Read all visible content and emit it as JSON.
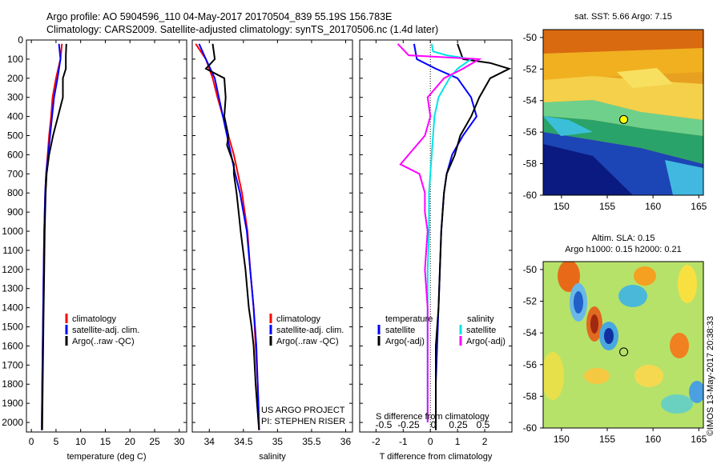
{
  "header": {
    "line1": "Argo profile: AO 5904596_110 04-May-2017 20170504_839 55.19S 156.783E",
    "line2": "Climatology: CARS2009. Satellite-adjusted climatology: synTS_20170506.nc (1.4d later)"
  },
  "colors": {
    "climatology": "#ff0000",
    "satellite": "#0000ff",
    "argo": "#000000",
    "satellite_salinity": "#00e5e5",
    "argo_adj_salinity": "#ff00ff"
  },
  "chart_data": [
    {
      "id": "temperature",
      "type": "line",
      "xlabel": "temperature (deg C)",
      "xlim": [
        -1,
        31.5
      ],
      "xticks": [
        0,
        5,
        10,
        15,
        20,
        25,
        30
      ],
      "ylim": [
        0,
        2050
      ],
      "yticks": [
        0,
        100,
        200,
        300,
        400,
        500,
        600,
        700,
        800,
        900,
        1000,
        1100,
        1200,
        1300,
        1400,
        1500,
        1600,
        1700,
        1800,
        1900,
        2000
      ],
      "legend": [
        "climatology",
        "satellite-adj. clim.",
        "Argo(..raw -QC)"
      ],
      "series": [
        {
          "name": "climatology",
          "color": "#ff0000",
          "points": [
            [
              6.2,
              20
            ],
            [
              5.9,
              100
            ],
            [
              5.0,
              200
            ],
            [
              4.3,
              300
            ],
            [
              4.0,
              400
            ],
            [
              3.6,
              500
            ],
            [
              3.3,
              600
            ],
            [
              3.0,
              700
            ],
            [
              2.8,
              800
            ],
            [
              2.7,
              900
            ],
            [
              2.6,
              1000
            ],
            [
              2.5,
              1200
            ],
            [
              2.4,
              1400
            ],
            [
              2.3,
              1600
            ],
            [
              2.2,
              1800
            ],
            [
              2.1,
              2040
            ]
          ]
        },
        {
          "name": "satellite-adj. clim.",
          "color": "#0000ff",
          "points": [
            [
              5.6,
              20
            ],
            [
              5.9,
              100
            ],
            [
              5.3,
              200
            ],
            [
              4.6,
              300
            ],
            [
              4.2,
              400
            ],
            [
              3.8,
              500
            ],
            [
              3.4,
              600
            ],
            [
              3.0,
              700
            ],
            [
              2.8,
              800
            ],
            [
              2.7,
              900
            ],
            [
              2.6,
              1000
            ],
            [
              2.5,
              1200
            ],
            [
              2.4,
              1400
            ],
            [
              2.3,
              1600
            ],
            [
              2.2,
              1800
            ],
            [
              2.1,
              2040
            ]
          ]
        },
        {
          "name": "Argo(..raw -QC)",
          "color": "#000000",
          "points": [
            [
              7.1,
              20
            ],
            [
              7.0,
              80
            ],
            [
              7.0,
              150
            ],
            [
              6.4,
              200
            ],
            [
              6.4,
              300
            ],
            [
              5.4,
              400
            ],
            [
              4.4,
              500
            ],
            [
              3.6,
              600
            ],
            [
              3.1,
              700
            ],
            [
              2.9,
              800
            ],
            [
              2.8,
              900
            ],
            [
              2.7,
              1000
            ],
            [
              2.6,
              1200
            ],
            [
              2.5,
              1400
            ],
            [
              2.4,
              1600
            ],
            [
              2.3,
              1800
            ],
            [
              2.2,
              2040
            ]
          ]
        }
      ]
    },
    {
      "id": "salinity",
      "type": "line",
      "xlabel": "salinity",
      "xlim": [
        33.75,
        36.1
      ],
      "xticks": [
        34,
        34.5,
        35,
        35.5,
        36
      ],
      "ylim": [
        0,
        2050
      ],
      "legend": [
        "climatology",
        "satellite-adj. clim.",
        "Argo(..raw -QC)"
      ],
      "annotation": [
        "US ARGO PROJECT",
        "PI: STEPHEN RISER"
      ],
      "series": [
        {
          "name": "climatology",
          "color": "#ff0000",
          "points": [
            [
              33.8,
              20
            ],
            [
              33.95,
              100
            ],
            [
              34.05,
              200
            ],
            [
              34.12,
              300
            ],
            [
              34.2,
              400
            ],
            [
              34.28,
              500
            ],
            [
              34.36,
              600
            ],
            [
              34.42,
              700
            ],
            [
              34.48,
              800
            ],
            [
              34.52,
              900
            ],
            [
              34.56,
              1000
            ],
            [
              34.6,
              1200
            ],
            [
              34.65,
              1400
            ],
            [
              34.68,
              1600
            ],
            [
              34.71,
              1800
            ],
            [
              34.73,
              2040
            ]
          ]
        },
        {
          "name": "satellite-adj. clim.",
          "color": "#0000ff",
          "points": [
            [
              33.85,
              20
            ],
            [
              33.95,
              100
            ],
            [
              34.08,
              200
            ],
            [
              34.14,
              300
            ],
            [
              34.2,
              400
            ],
            [
              34.26,
              500
            ],
            [
              34.32,
              600
            ],
            [
              34.38,
              700
            ],
            [
              34.45,
              800
            ],
            [
              34.5,
              900
            ],
            [
              34.55,
              1000
            ],
            [
              34.6,
              1200
            ],
            [
              34.65,
              1400
            ],
            [
              34.69,
              1600
            ],
            [
              34.71,
              1800
            ],
            [
              34.72,
              1900
            ],
            [
              34.73,
              2040
            ]
          ]
        },
        {
          "name": "Argo(..raw -QC)",
          "color": "#000000",
          "points": [
            [
              34.05,
              20
            ],
            [
              34.08,
              100
            ],
            [
              33.95,
              150
            ],
            [
              34.22,
              200
            ],
            [
              34.24,
              300
            ],
            [
              34.22,
              400
            ],
            [
              34.28,
              500
            ],
            [
              34.26,
              550
            ],
            [
              34.36,
              650
            ],
            [
              34.36,
              700
            ],
            [
              34.4,
              800
            ],
            [
              34.43,
              900
            ],
            [
              34.46,
              1000
            ],
            [
              34.53,
              1200
            ],
            [
              34.58,
              1400
            ],
            [
              34.62,
              1500
            ],
            [
              34.65,
              1600
            ],
            [
              34.68,
              1800
            ],
            [
              34.72,
              2000
            ],
            [
              34.73,
              2040
            ]
          ]
        }
      ]
    },
    {
      "id": "difference",
      "type": "line",
      "xlabel": "T difference from climatology",
      "xlabel2": "S difference from climatology",
      "xlim": [
        -2.6,
        3.0
      ],
      "xticks": [
        -2,
        -1,
        0,
        1,
        2
      ],
      "xticks_s": [
        "-0.5",
        "-0.25",
        "0",
        "0.25",
        "0.5"
      ],
      "ylim": [
        0,
        2050
      ],
      "legend_temperature_title": "temperature",
      "legend_salinity_title": "salinity",
      "legend": [
        "satellite",
        "Argo(-adj)",
        "satellite",
        "Argo(-adj)"
      ],
      "series": [
        {
          "name": "T satellite",
          "color": "#0000ff",
          "points": [
            [
              -0.6,
              20
            ],
            [
              -0.5,
              100
            ],
            [
              0.2,
              150
            ],
            [
              1.0,
              200
            ],
            [
              1.5,
              300
            ],
            [
              1.7,
              400
            ],
            [
              1.2,
              500
            ],
            [
              0.8,
              600
            ],
            [
              0.6,
              700
            ],
            [
              0.5,
              800
            ],
            [
              0.45,
              900
            ],
            [
              0.4,
              1000
            ],
            [
              0.35,
              1200
            ],
            [
              0.3,
              1400
            ],
            [
              0.25,
              1600
            ],
            [
              0.2,
              1800
            ],
            [
              0.2,
              2040
            ]
          ]
        },
        {
          "name": "T Argo(-adj)",
          "color": "#000000",
          "points": [
            [
              1.0,
              20
            ],
            [
              1.2,
              100
            ],
            [
              2.2,
              120
            ],
            [
              2.9,
              150
            ],
            [
              2.2,
              200
            ],
            [
              1.8,
              300
            ],
            [
              1.5,
              400
            ],
            [
              1.1,
              500
            ],
            [
              0.9,
              600
            ],
            [
              0.6,
              700
            ],
            [
              0.5,
              800
            ],
            [
              0.45,
              900
            ],
            [
              0.4,
              1000
            ],
            [
              0.35,
              1200
            ],
            [
              0.3,
              1400
            ],
            [
              0.2,
              1600
            ],
            [
              0.2,
              1800
            ],
            [
              0.2,
              2040
            ]
          ]
        },
        {
          "name": "S satellite",
          "color": "#00e5e5",
          "points": [
            [
              0.05,
              20
            ],
            [
              0.1,
              60
            ],
            [
              0.6,
              80
            ],
            [
              1.5,
              100
            ],
            [
              1.0,
              150
            ],
            [
              0.7,
              200
            ],
            [
              0.3,
              300
            ],
            [
              0.15,
              400
            ],
            [
              0.1,
              500
            ],
            [
              0.05,
              600
            ],
            [
              0.0,
              700
            ],
            [
              -0.05,
              800
            ],
            [
              -0.05,
              1000
            ],
            [
              -0.1,
              1200
            ],
            [
              -0.1,
              1400
            ],
            [
              -0.1,
              1600
            ],
            [
              -0.1,
              1800
            ],
            [
              -0.1,
              2000
            ]
          ]
        },
        {
          "name": "S Argo(-adj)",
          "color": "#ff00ff",
          "points": [
            [
              -1.2,
              20
            ],
            [
              -0.8,
              80
            ],
            [
              1.8,
              100
            ],
            [
              1.2,
              150
            ],
            [
              0.5,
              200
            ],
            [
              -0.1,
              300
            ],
            [
              0.0,
              400
            ],
            [
              -0.2,
              500
            ],
            [
              -0.8,
              600
            ],
            [
              -1.1,
              650
            ],
            [
              -0.4,
              700
            ],
            [
              -0.2,
              800
            ],
            [
              -0.2,
              900
            ],
            [
              -0.1,
              1000
            ],
            [
              -0.2,
              1200
            ],
            [
              -0.1,
              1400
            ],
            [
              -0.1,
              1600
            ],
            [
              -0.1,
              1800
            ],
            [
              -0.1,
              2000
            ]
          ]
        }
      ]
    },
    {
      "id": "sst_map",
      "type": "heatmap",
      "title": "sat. SST: 5.66 Argo: 7.15",
      "xlim": [
        148,
        165.5
      ],
      "ylim": [
        -60,
        -49.5
      ],
      "xticks": [
        150,
        155,
        160,
        165
      ],
      "yticks": [
        -50,
        -52,
        -54,
        -56,
        -58,
        -60
      ],
      "marker": [
        156.8,
        -55.2
      ]
    },
    {
      "id": "sla_map",
      "type": "heatmap",
      "title": "Altim. SLA: 0.15",
      "subtitle": "Argo h1000: 0.15 h2000: 0.21",
      "xlim": [
        148,
        165.5
      ],
      "ylim": [
        -60,
        -49.5
      ],
      "xticks": [
        150,
        155,
        160,
        165
      ],
      "yticks": [
        -50,
        -52,
        -54,
        -56,
        -58,
        -60
      ],
      "marker": [
        156.8,
        -55.2
      ]
    }
  ],
  "footer": {
    "credit": "©IMOS 13-May-2017 20:38:33"
  }
}
